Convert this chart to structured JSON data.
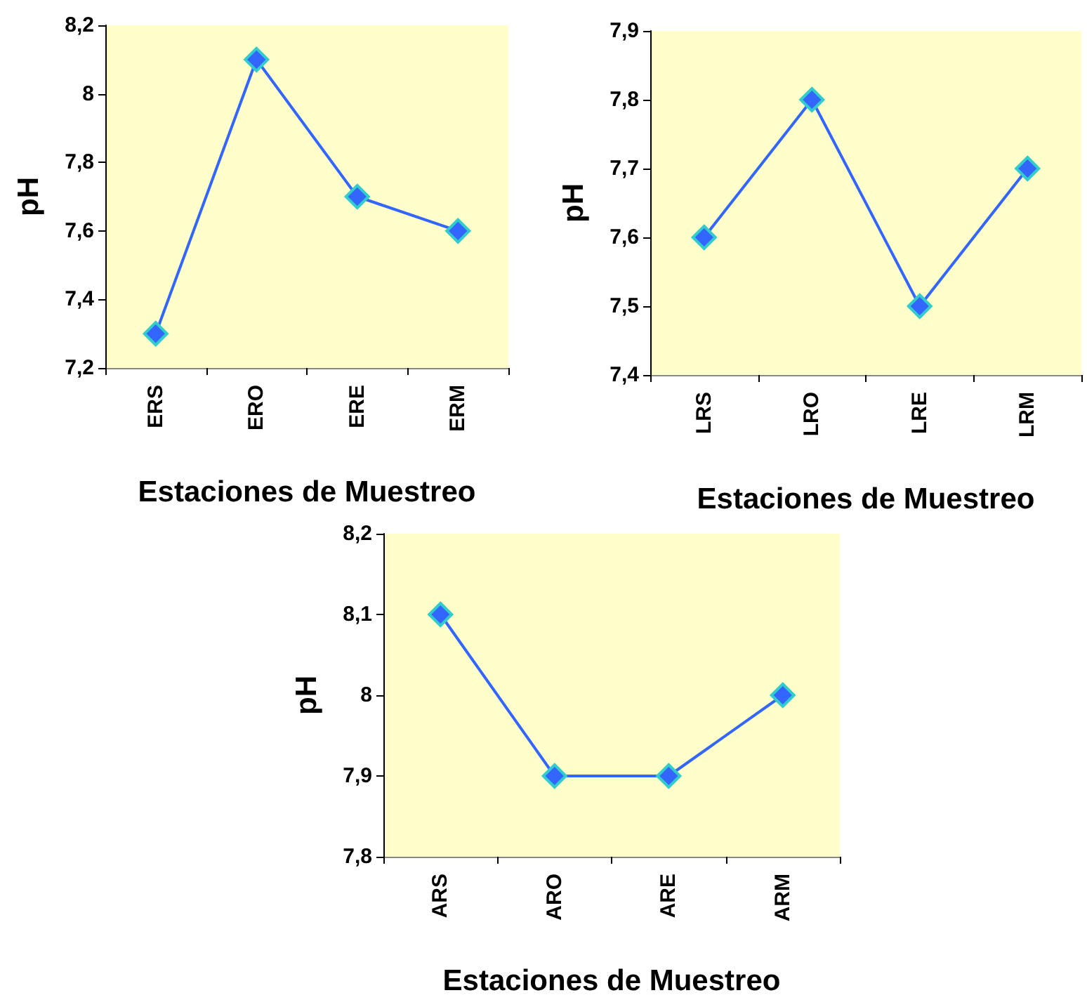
{
  "chart_data": [
    {
      "type": "line",
      "categories": [
        "ERS",
        "ERO",
        "ERE",
        "ERM"
      ],
      "series": [
        {
          "color": "#3366ff",
          "values": [
            7.3,
            8.1,
            7.7,
            7.6
          ]
        }
      ],
      "xlabel": "Estaciones de Muestreo",
      "ylabel": "pH",
      "ylim": [
        7.2,
        8.2
      ],
      "yticks": [
        {
          "value": 7.2,
          "label": "7,2"
        },
        {
          "value": 7.4,
          "label": "7,4"
        },
        {
          "value": 7.6,
          "label": "7,6"
        },
        {
          "value": 7.8,
          "label": "7,8"
        },
        {
          "value": 8,
          "label": "8"
        },
        {
          "value": 8.2,
          "label": "8,2"
        }
      ],
      "marker": "diamond"
    },
    {
      "type": "line",
      "categories": [
        "LRS",
        "LRO",
        "LRE",
        "LRM"
      ],
      "series": [
        {
          "color": "#3366ff",
          "values": [
            7.6,
            7.8,
            7.5,
            7.7
          ]
        }
      ],
      "xlabel": "Estaciones de Muestreo",
      "ylabel": "pH",
      "ylim": [
        7.4,
        7.9
      ],
      "yticks": [
        {
          "value": 7.4,
          "label": "7,4"
        },
        {
          "value": 7.5,
          "label": "7,5"
        },
        {
          "value": 7.6,
          "label": "7,6"
        },
        {
          "value": 7.7,
          "label": "7,7"
        },
        {
          "value": 7.8,
          "label": "7,8"
        },
        {
          "value": 7.9,
          "label": "7,9"
        }
      ],
      "marker": "diamond"
    },
    {
      "type": "line",
      "categories": [
        "ARS",
        "ARO",
        "ARE",
        "ARM"
      ],
      "series": [
        {
          "color": "#3366ff",
          "values": [
            8.1,
            7.9,
            7.9,
            8.0
          ]
        }
      ],
      "xlabel": "Estaciones de Muestreo",
      "ylabel": "pH",
      "ylim": [
        7.8,
        8.2
      ],
      "yticks": [
        {
          "value": 7.8,
          "label": "7,8"
        },
        {
          "value": 7.9,
          "label": "7,9"
        },
        {
          "value": 8,
          "label": "8"
        },
        {
          "value": 8.1,
          "label": "8,1"
        },
        {
          "value": 8.2,
          "label": "8,2"
        }
      ],
      "marker": "diamond"
    }
  ]
}
